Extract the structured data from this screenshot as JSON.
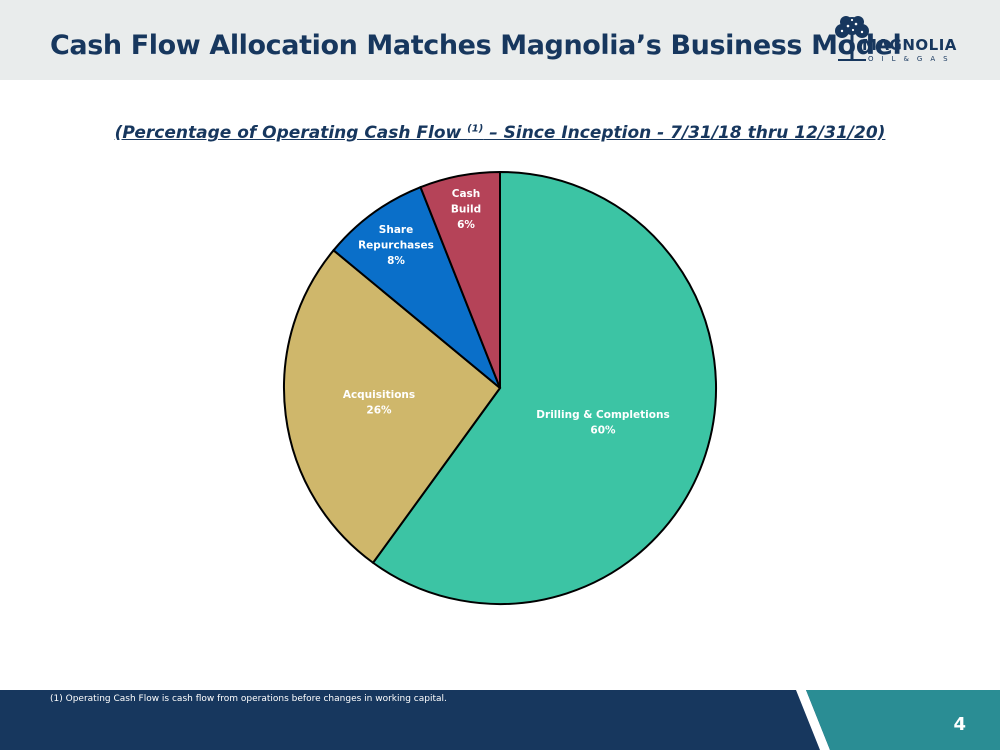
{
  "header": {
    "title": "Cash Flow Allocation Matches Magnolia’s Business Model",
    "logo_text": "MAGNOLIA",
    "logo_subtext": "OIL&GAS"
  },
  "chart_data": {
    "type": "pie",
    "title_main": "(Percentage of Operating Cash Flow ",
    "title_sup": "(1)",
    "title_rest": " – Since Inception - 7/31/18 thru 12/31/20)",
    "slices": [
      {
        "label_lines": [
          "Drilling & Completions"
        ],
        "value": 60,
        "value_label": "60%",
        "color": "#3cc4a4"
      },
      {
        "label_lines": [
          "Acquisitions"
        ],
        "value": 26,
        "value_label": "26%",
        "color": "#cfb76b"
      },
      {
        "label_lines": [
          "Share",
          "Repurchases"
        ],
        "value": 8,
        "value_label": "8%",
        "color": "#0a6fc9"
      },
      {
        "label_lines": [
          "Cash",
          "Build"
        ],
        "value": 6,
        "value_label": "6%",
        "color": "#b54358"
      }
    ]
  },
  "footer": {
    "footnote": "(1)   Operating Cash Flow is cash flow from operations before changes in working capital.",
    "page_number": "4"
  },
  "colors": {
    "navy": "#17375e",
    "teal": "#2a8d94",
    "header_bg": "#e9ecec"
  }
}
